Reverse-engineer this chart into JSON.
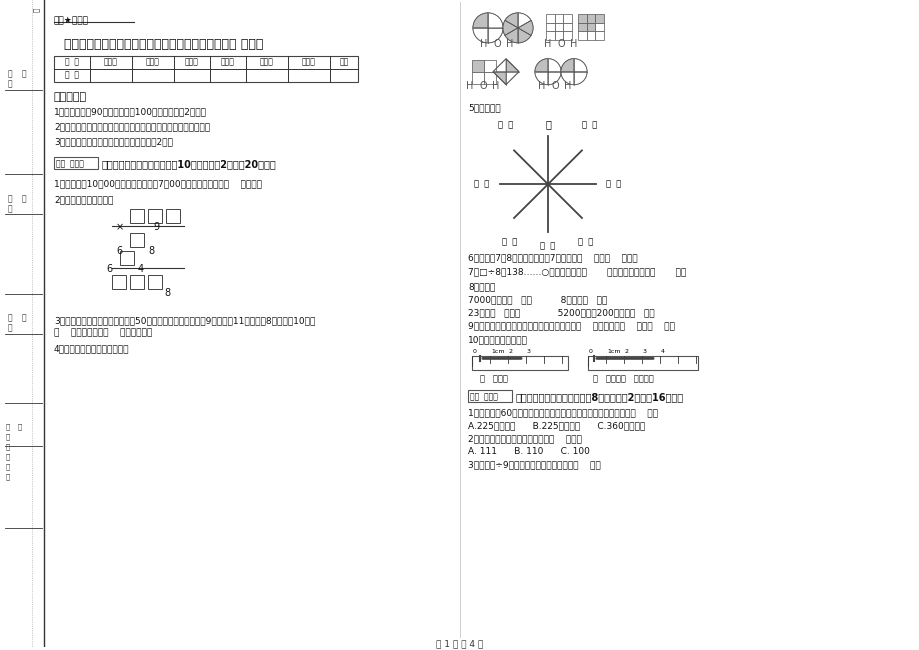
{
  "bg_color": "#ffffff",
  "text_color": "#222222",
  "title": "十堰市实验小学三年级数学下学期全真模拟考试试题 附答案",
  "secret_label": "绝密★启用前",
  "exam_info": [
    "1、考试时间：90分钟，满分为100分（含卷面分2分）。",
    "2、请首先按要求在试卷的指定位置填写您的姓名、班级、学号。",
    "3、不要在试卷上乱写乱画，卷面不整洁扣2分。"
  ],
  "section1_title": "一、用心思考，正确填空（共10小题，每题2分，共20分）。",
  "section2_title": "二、反复比较，慎重选择（共8小题，每题2分，共16分）。",
  "q1": "1、小林晚上10：00睡觉，第二天早上7：00起床，他一共睡了（    ）小时。",
  "q2": "2、在里填上适当的数。",
  "q3a": "3、体育老师对第一小组同学进行50米跑测试，成绩如下小红9秒，小丽11秒，小明8秒，小军10秒，",
  "q3b": "（    ）跑得最快，（    ）跑得最慢。",
  "q4": "4、看图写分数，并比较大小。",
  "q5": "5、填一填。",
  "q6": "6、时针在7和8之间，分针指向7，这时是（    ）时（    ）分。",
  "q7": "7、□÷8＝138……○，余数最大填（       ），这时被除数是（       ）。",
  "q8": "8、换算。",
  "q8_line1": "7000千克＝（   ）吨          8千克＝（   ）克",
  "q8_line2": "23吨＝（   ）千克             5200千克－200千克＝（   ）吨",
  "q9": "9、在进位加法中，不管哪一位上的数相加满（    ），都要向（    ）进（    ）。",
  "q10": "10、量出钉子的长度。",
  "ruler1_label": "（   ）毫米",
  "ruler2_label": "（   ）厘米（   ）毫米。",
  "section2_q1": "1、把一根长60厘米的铁丝围成一个正方形，这个正方形的面积是（    ）。",
  "section2_q1_opts": "A.225平方分米      B.225平方厘米      C.360平方厘米",
  "section2_q2": "2、最大的三位数是最大一位数的（    ）倍。",
  "section2_q2_opts": "A. 111      B. 110      C. 100",
  "section2_q3": "3、要使口÷9的商是三位数，口里只能填（    ）。",
  "page_footer": "第 1 页 共 4 页",
  "table_headers": [
    "题  号",
    "填空题",
    "选择题",
    "判断题",
    "计算题",
    "综合题",
    "应用题",
    "总分"
  ],
  "table_row0": [
    "得  分",
    "",
    "",
    "",
    "",
    "",
    "",
    ""
  ]
}
